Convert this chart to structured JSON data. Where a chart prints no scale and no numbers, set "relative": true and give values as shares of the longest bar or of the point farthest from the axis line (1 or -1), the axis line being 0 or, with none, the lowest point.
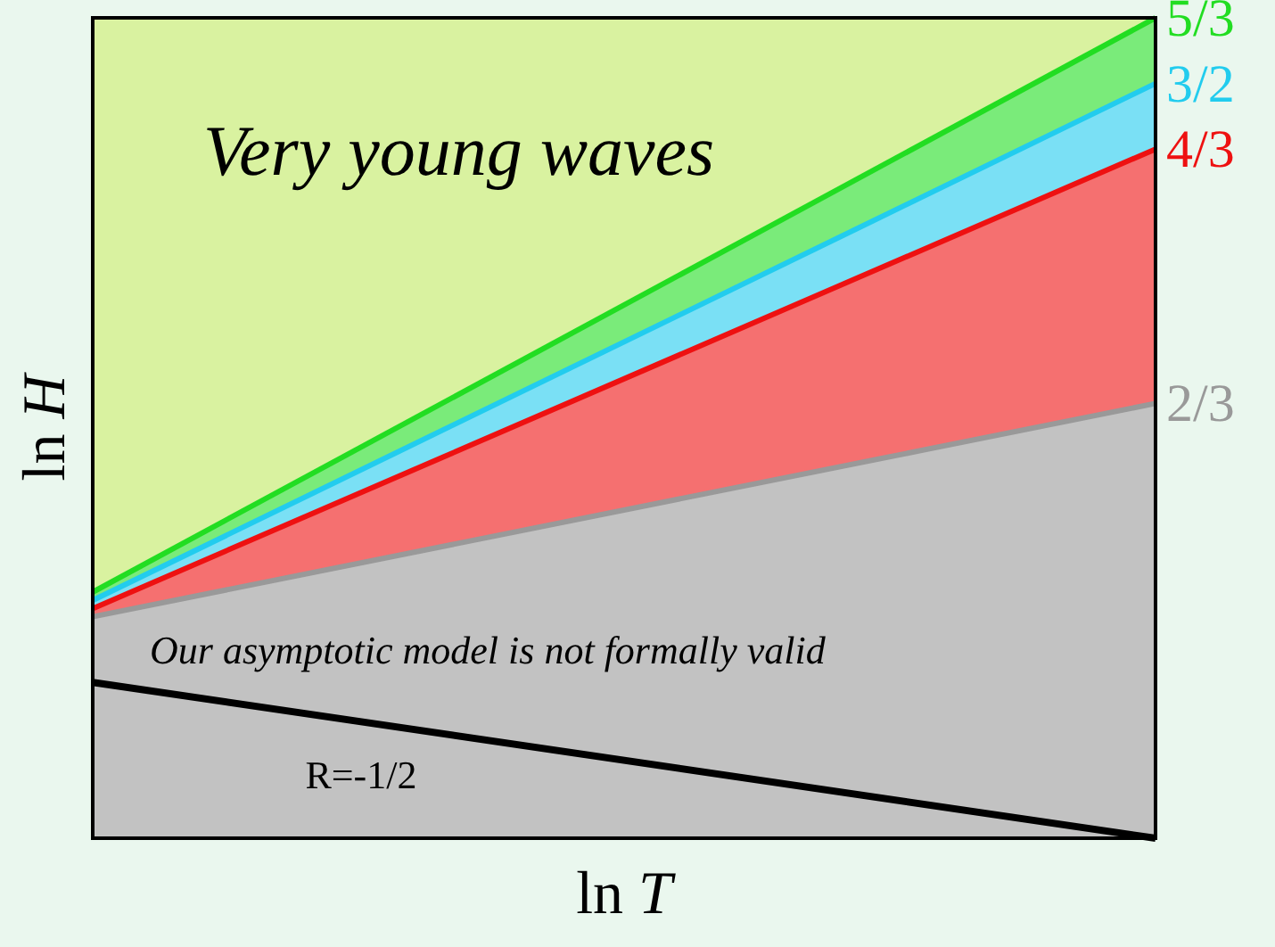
{
  "chart_data": {
    "type": "line",
    "relative": true,
    "categories": [
      null,
      null
    ],
    "xlabel": "ln T",
    "ylabel": "ln H",
    "legend": false,
    "series": [
      {
        "name": "5/3",
        "type": "area",
        "color": "#22dd22",
        "values": [
          0.3,
          1
        ]
      },
      {
        "name": "3/2",
        "type": "area",
        "color": "#22ccee",
        "values": [
          0.29,
          0.92
        ]
      },
      {
        "name": "4/3",
        "type": "area",
        "color": "#ee1111",
        "values": [
          0.28,
          0.84
        ]
      },
      {
        "name": "2/3",
        "type": "area",
        "color": "#999999",
        "values": [
          0.27,
          0.53
        ]
      },
      {
        "name": "R=-1/2",
        "color": "#000000",
        "values": [
          0.19,
          0
        ]
      }
    ],
    "annotations": [
      "Very young waves",
      "Our asymptotic model is not formally valid"
    ]
  }
}
